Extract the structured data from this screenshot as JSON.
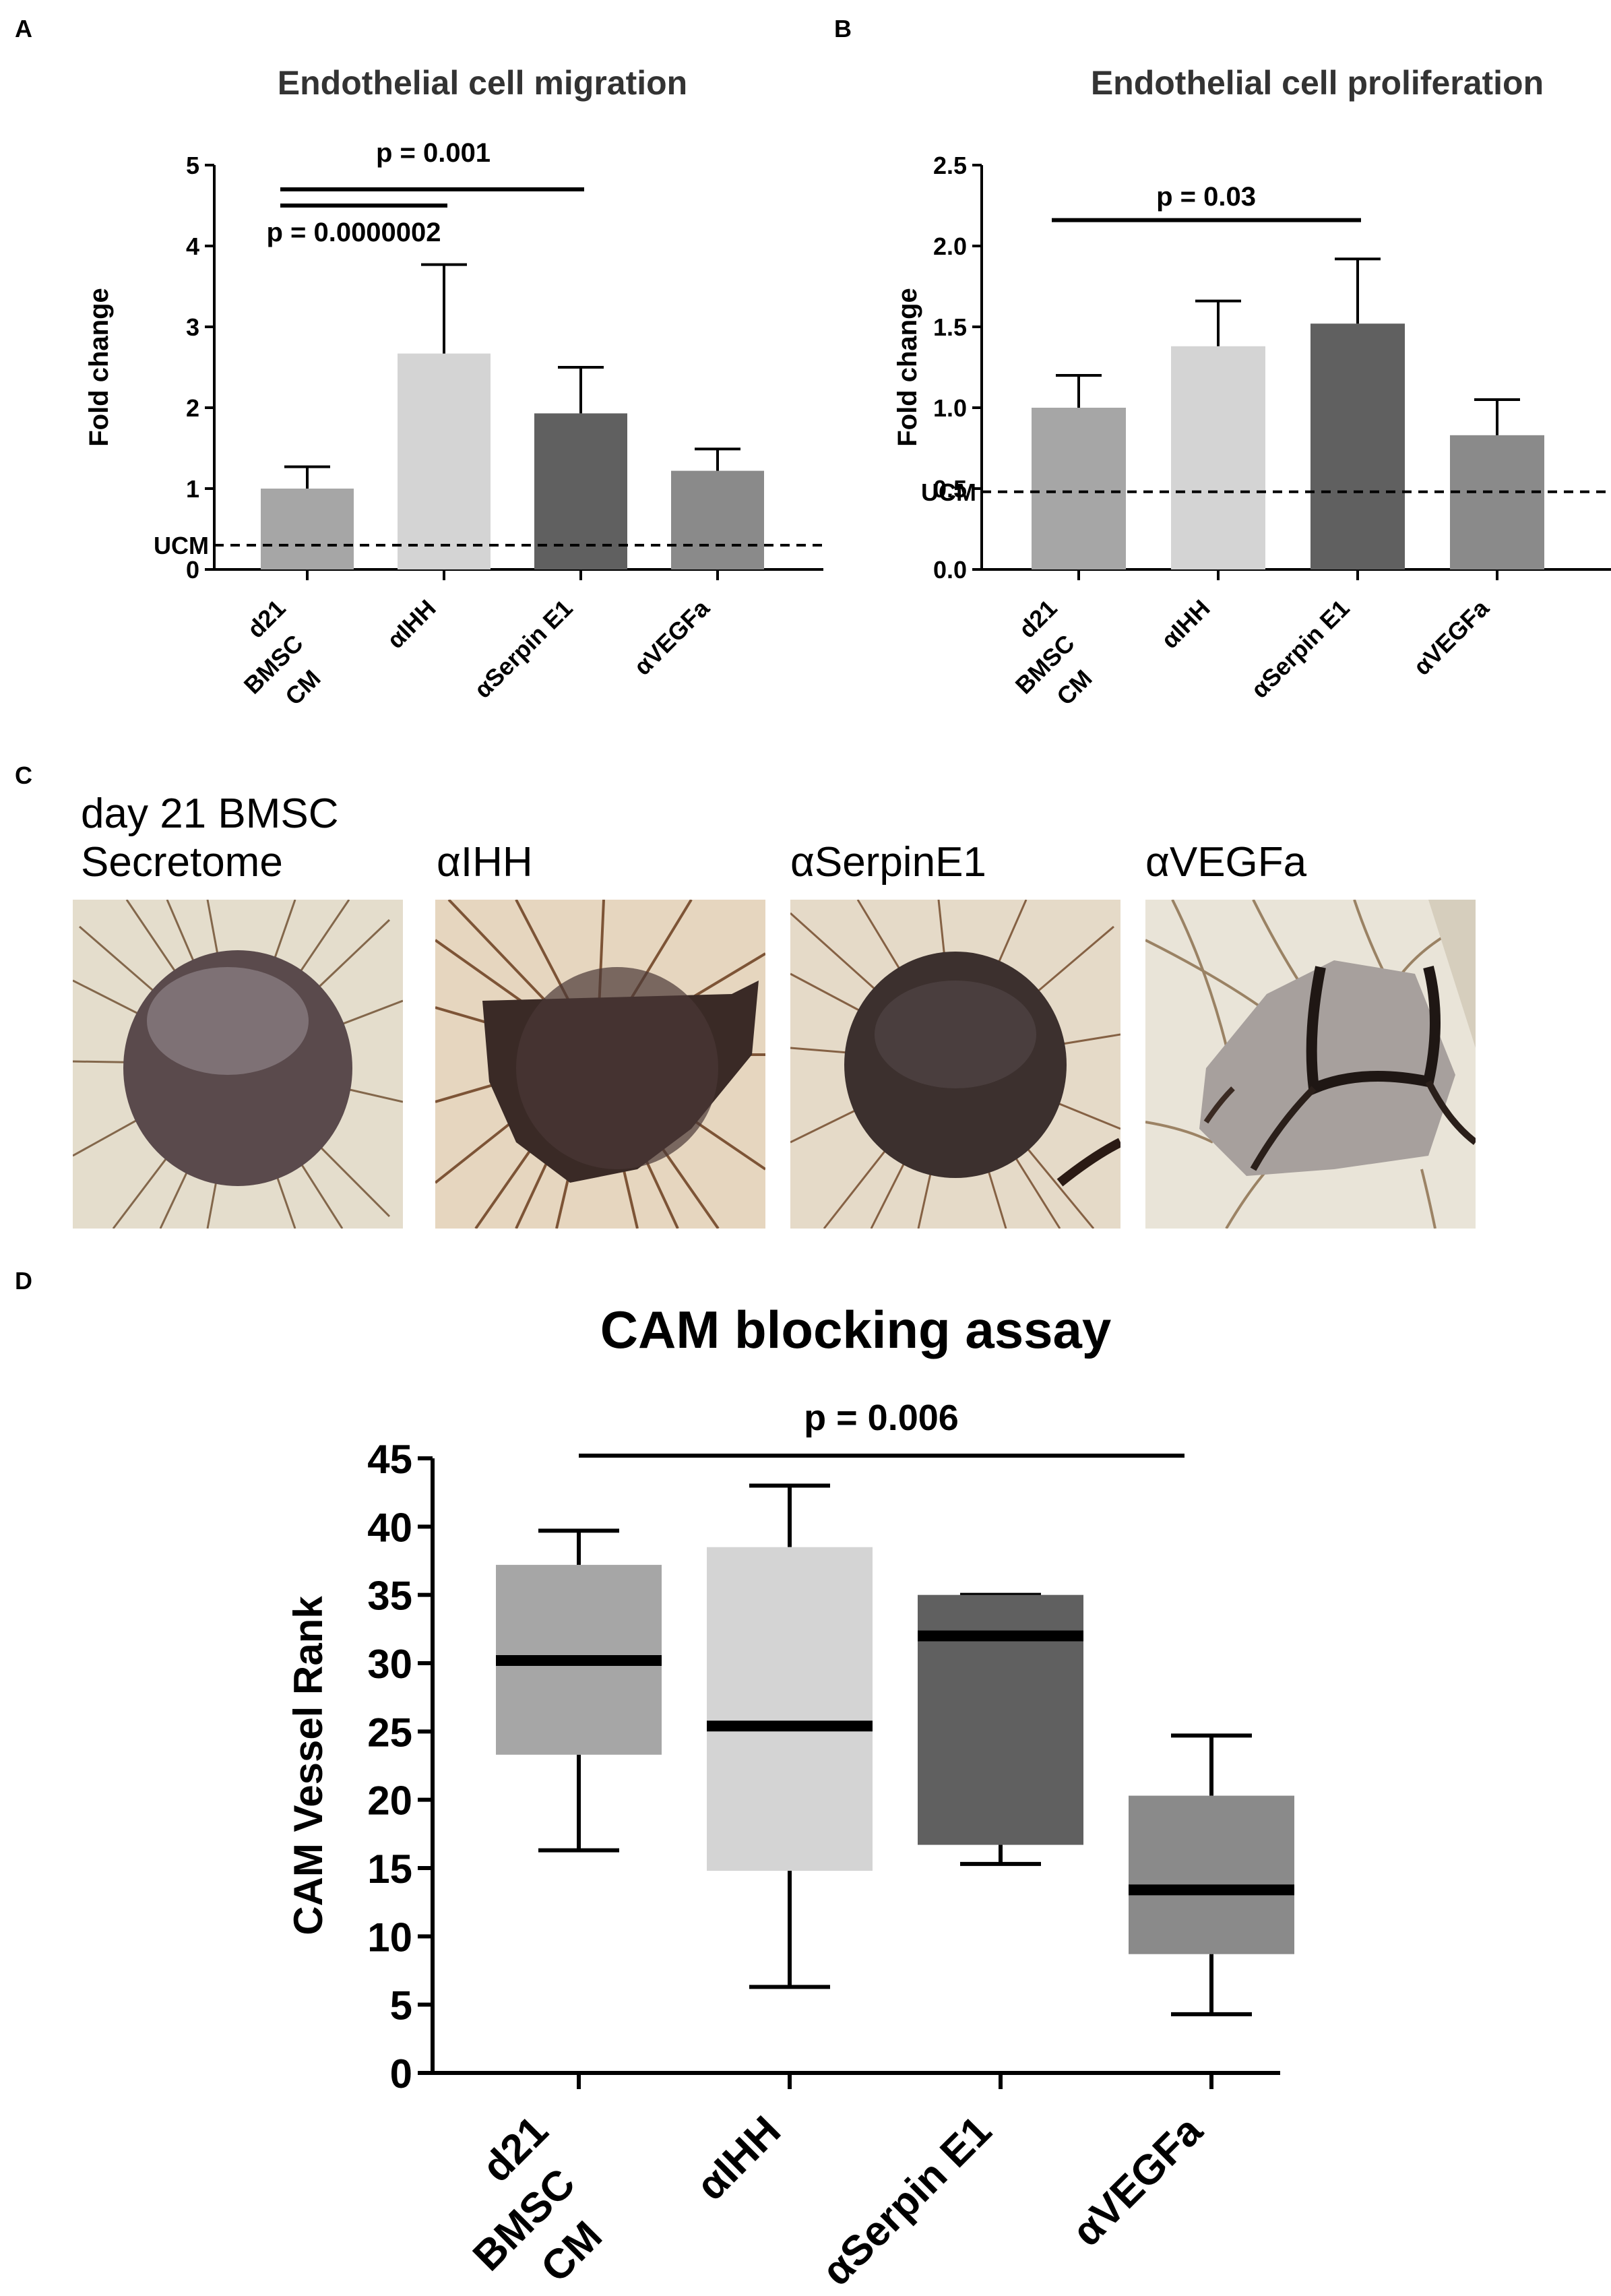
{
  "panels": {
    "a": "A",
    "b": "B",
    "c": "C",
    "d": "D"
  },
  "chart_data": [
    {
      "type": "bar",
      "panel": "A",
      "title": "Endothelial cell migration",
      "xlabel": "",
      "ylabel": "Fold change",
      "ylim": [
        0,
        5
      ],
      "yticks": [
        "0",
        "1",
        "2",
        "3",
        "4",
        "5"
      ],
      "categories": [
        "d21 BMSC CM",
        "αIHH",
        "αSerpin E1",
        "αVEGFa"
      ],
      "category_lines": [
        [
          "d21",
          "BMSC",
          "CM"
        ],
        [
          "αIHH"
        ],
        [
          "αSerpin E1"
        ],
        [
          "αVEGFa"
        ]
      ],
      "values": [
        1.0,
        2.67,
        1.93,
        1.22
      ],
      "errors": [
        0.27,
        1.1,
        0.57,
        0.27
      ],
      "bar_colors": [
        "#a6a6a6",
        "#d4d4d4",
        "#606060",
        "#8a8a8a"
      ],
      "baseline": {
        "label": "UCM",
        "value": 0.3
      },
      "annotations": [
        {
          "text": "p = 0.001",
          "from": 0,
          "to": 2,
          "y": 4.7
        },
        {
          "text": "p = 0.0000002",
          "from": 0,
          "to": 1,
          "y": 4.5
        }
      ]
    },
    {
      "type": "bar",
      "panel": "B",
      "title": "Endothelial cell proliferation",
      "xlabel": "",
      "ylabel": "Fold change",
      "ylim": [
        0,
        2.5
      ],
      "yticks": [
        "0.0",
        "0.5",
        "1.0",
        "1.5",
        "2.0",
        "2.5"
      ],
      "categories": [
        "d21 BMSC CM",
        "αIHH",
        "αSerpin E1",
        "αVEGFa"
      ],
      "category_lines": [
        [
          "d21",
          "BMSC",
          "CM"
        ],
        [
          "αIHH"
        ],
        [
          "αSerpin E1"
        ],
        [
          "αVEGFa"
        ]
      ],
      "values": [
        1.0,
        1.38,
        1.52,
        0.83
      ],
      "errors": [
        0.2,
        0.28,
        0.4,
        0.22
      ],
      "bar_colors": [
        "#a6a6a6",
        "#d4d4d4",
        "#606060",
        "#8a8a8a"
      ],
      "baseline": {
        "label": "UCM",
        "value": 0.48
      },
      "annotations": [
        {
          "text": "p = 0.03",
          "from": 0,
          "to": 2,
          "y": 2.16
        }
      ]
    },
    {
      "type": "box",
      "panel": "D",
      "title": "CAM  blocking assay",
      "xlabel": "",
      "ylabel": "CAM Vessel Rank",
      "ylim": [
        0,
        45
      ],
      "yticks": [
        "0",
        "5",
        "10",
        "15",
        "20",
        "25",
        "30",
        "35",
        "40",
        "45"
      ],
      "categories": [
        "d21 BMSC CM",
        "αIHH",
        "αSerpin E1",
        "αVEGFa"
      ],
      "category_lines": [
        [
          "d21",
          "BMSC",
          "CM"
        ],
        [
          "αIHH"
        ],
        [
          "αSerpin E1"
        ],
        [
          "αVEGFa"
        ]
      ],
      "series": [
        {
          "name": "d21 BMSC CM",
          "min": 16.3,
          "q1": 23.3,
          "median": 30.2,
          "q3": 37.2,
          "max": 39.7
        },
        {
          "name": "αIHH",
          "min": 6.3,
          "q1": 14.8,
          "median": 25.4,
          "q3": 38.5,
          "max": 43.0
        },
        {
          "name": "αSerpin E1",
          "min": 15.3,
          "q1": 16.7,
          "median": 32.0,
          "q3": 35.0,
          "max": 35.0
        },
        {
          "name": "αVEGFa",
          "min": 4.3,
          "q1": 8.7,
          "median": 13.4,
          "q3": 20.3,
          "max": 24.7
        }
      ],
      "box_colors": [
        "#a6a6a6",
        "#d4d4d4",
        "#606060",
        "#8a8a8a"
      ],
      "annotations": [
        {
          "text": "p = 0.006",
          "from": 0,
          "to": 3,
          "y": 45.2
        }
      ]
    }
  ],
  "photos": {
    "captions": [
      [
        "day 21 BMSC",
        "Secretome"
      ],
      [
        "αIHH"
      ],
      [
        "αSerpinE1"
      ],
      [
        "αVEGFa"
      ]
    ]
  }
}
